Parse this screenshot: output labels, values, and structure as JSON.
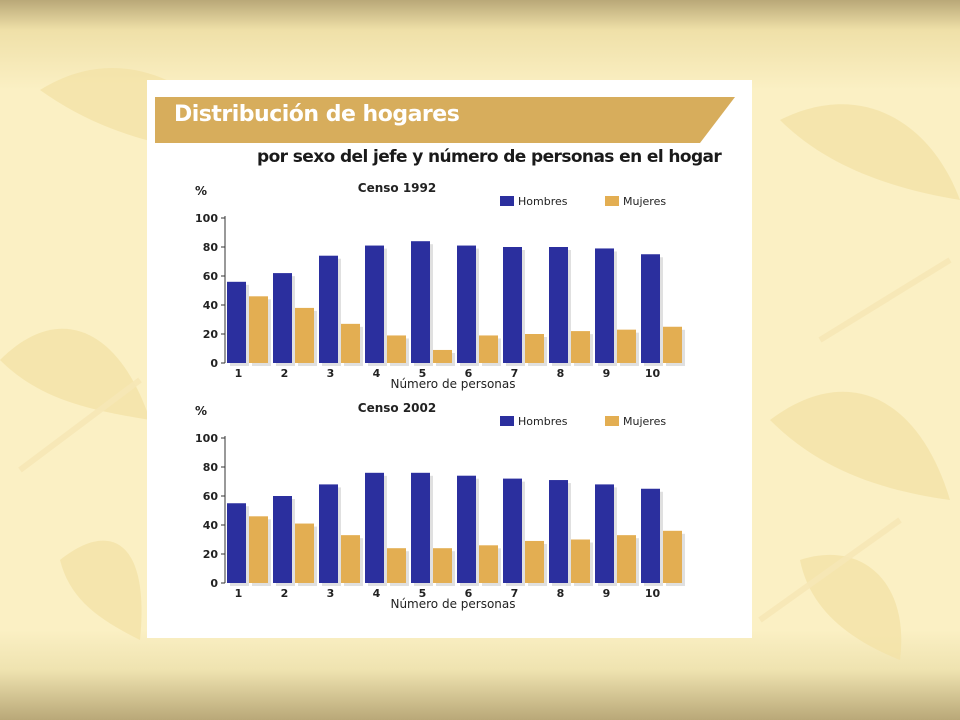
{
  "header": {
    "title": "Distribución de hogares",
    "subtitle": "por sexo del jefe y número de personas en el hogar"
  },
  "colors": {
    "hombres": "#2b2f9e",
    "mujeres": "#e3ae52",
    "banner": "#d7ad5c",
    "background": "#fbf0c4"
  },
  "chart_data": [
    {
      "type": "bar",
      "title": "Censo 1992",
      "ylabel": "%",
      "xlabel": "Número de personas",
      "categories": [
        "1",
        "2",
        "3",
        "4",
        "5",
        "6",
        "7",
        "8",
        "9",
        "10"
      ],
      "ylim": [
        0,
        100
      ],
      "yticks": [
        "0",
        "20",
        "40",
        "60",
        "80",
        "100"
      ],
      "legend_position": "top-right",
      "series": [
        {
          "name": "Hombres",
          "values": [
            56,
            62,
            74,
            81,
            84,
            81,
            80,
            80,
            79,
            75
          ]
        },
        {
          "name": "Mujeres",
          "values": [
            46,
            38,
            27,
            19,
            9,
            19,
            20,
            22,
            23,
            25
          ]
        }
      ]
    },
    {
      "type": "bar",
      "title": "Censo 2002",
      "ylabel": "%",
      "xlabel": "Número de personas",
      "categories": [
        "1",
        "2",
        "3",
        "4",
        "5",
        "6",
        "7",
        "8",
        "9",
        "10"
      ],
      "ylim": [
        0,
        100
      ],
      "yticks": [
        "0",
        "20",
        "40",
        "60",
        "80",
        "100"
      ],
      "legend_position": "top-right",
      "series": [
        {
          "name": "Hombres",
          "values": [
            55,
            60,
            68,
            76,
            76,
            74,
            72,
            71,
            68,
            65
          ]
        },
        {
          "name": "Mujeres",
          "values": [
            46,
            41,
            33,
            24,
            24,
            26,
            29,
            30,
            33,
            36
          ]
        }
      ]
    }
  ]
}
